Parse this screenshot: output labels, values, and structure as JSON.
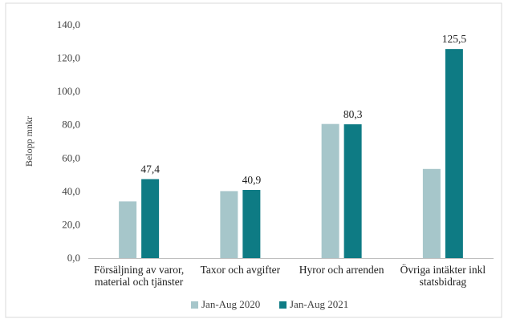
{
  "chart_data": {
    "type": "bar",
    "title": "",
    "ylabel": "Belopp mnkr",
    "xlabel": "",
    "ylim": [
      0,
      140
    ],
    "yticks": [
      "0,0",
      "20,0",
      "40,0",
      "60,0",
      "80,0",
      "100,0",
      "120,0",
      "140,0"
    ],
    "categories": [
      [
        "Försäljning av varor,",
        "material och tjänster"
      ],
      [
        "Taxor och avgifter"
      ],
      [
        "Hyror och arrenden"
      ],
      [
        "Övriga intäkter inkl",
        "statsbidrag"
      ]
    ],
    "series": [
      {
        "name": "Jan-Aug 2020",
        "color": "#a6c6ca",
        "values": [
          34.0,
          40.2,
          80.5,
          53.5
        ],
        "labels": [
          "",
          "",
          "",
          ""
        ]
      },
      {
        "name": "Jan-Aug 2021",
        "color": "#0e7b84",
        "values": [
          47.4,
          40.9,
          80.3,
          125.5
        ],
        "labels": [
          "47,4",
          "40,9",
          "80,3",
          "125,5"
        ]
      }
    ],
    "grid": false,
    "legend_position": "bottom"
  }
}
